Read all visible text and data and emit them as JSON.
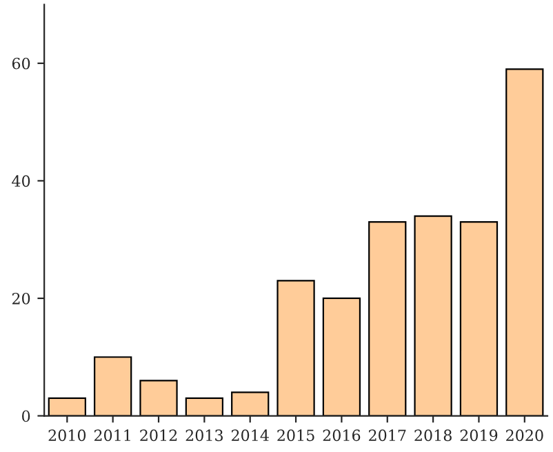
{
  "chart_data": {
    "type": "bar",
    "categories": [
      "2010",
      "2011",
      "2012",
      "2013",
      "2014",
      "2015",
      "2016",
      "2017",
      "2018",
      "2019",
      "2020"
    ],
    "values": [
      3,
      10,
      6,
      3,
      4,
      23,
      20,
      33,
      34,
      33,
      59
    ],
    "color": "#ffcc99",
    "ylim": [
      0,
      70
    ],
    "yticks": [
      0,
      20,
      40,
      60
    ],
    "grid": false
  }
}
